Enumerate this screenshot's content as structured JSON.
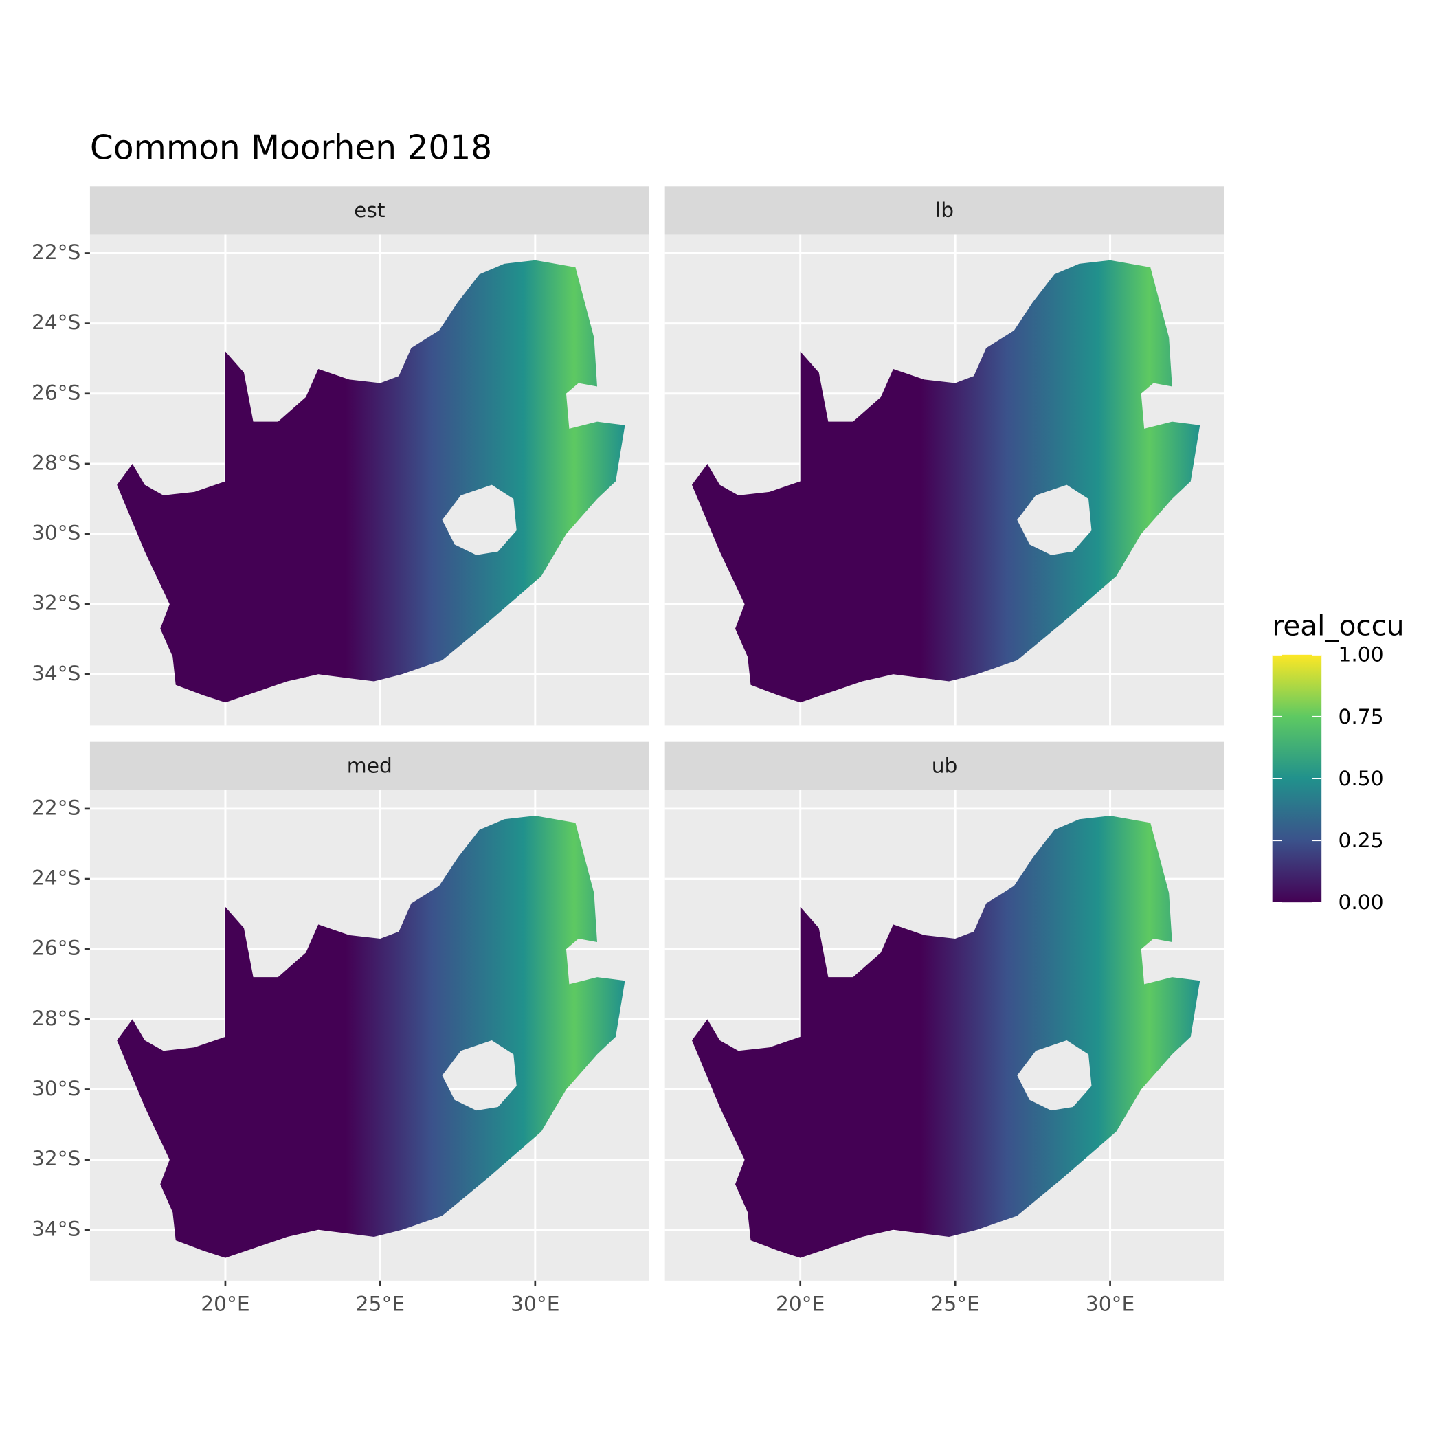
{
  "chart_data": {
    "type": "raster-map",
    "title": "Common Moorhen 2018",
    "facets": [
      "est",
      "lb",
      "med",
      "ub"
    ],
    "xlim": [
      15.63,
      33.68
    ],
    "ylim": [
      -35.45,
      -21.47
    ],
    "xticks": [
      {
        "value": 20,
        "label": "20°E"
      },
      {
        "value": 25,
        "label": "25°E"
      },
      {
        "value": 30,
        "label": "30°E"
      }
    ],
    "yticks": [
      {
        "value": -22,
        "label": "22°S"
      },
      {
        "value": -24,
        "label": "24°S"
      },
      {
        "value": -26,
        "label": "26°S"
      },
      {
        "value": -28,
        "label": "28°S"
      },
      {
        "value": -30,
        "label": "30°S"
      },
      {
        "value": -32,
        "label": "32°S"
      },
      {
        "value": -34,
        "label": "34°S"
      }
    ],
    "grid": true,
    "legend": {
      "title": "real_occu",
      "lim": [
        0,
        1
      ],
      "ticks": [
        {
          "value": 0,
          "label": "0.00"
        },
        {
          "value": 0.25,
          "label": "0.25"
        },
        {
          "value": 0.5,
          "label": "0.50"
        },
        {
          "value": 0.75,
          "label": "0.75"
        },
        {
          "value": 1,
          "label": "1.00"
        }
      ],
      "colormap": [
        "#440154",
        "#3b528b",
        "#21918c",
        "#5ec962",
        "#fde725"
      ]
    }
  }
}
